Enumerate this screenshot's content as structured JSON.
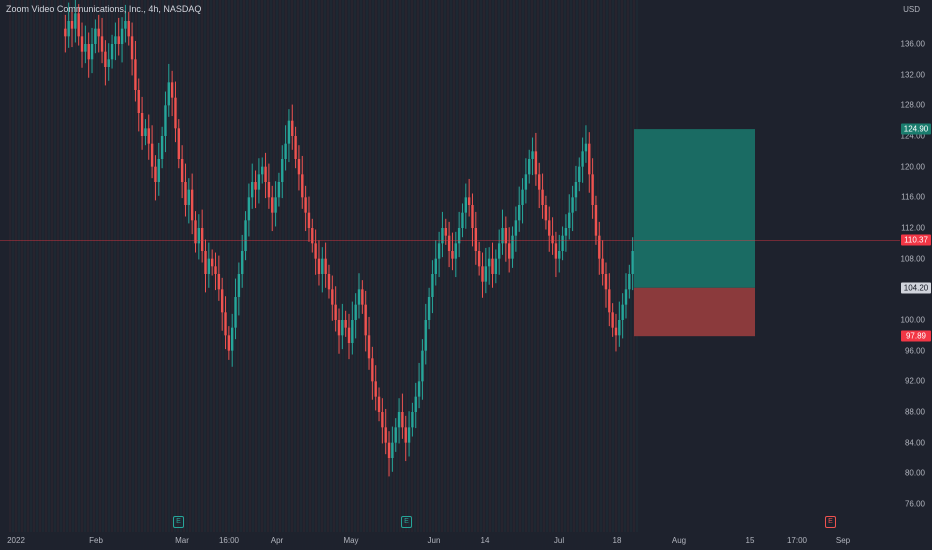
{
  "symbol_title": "Zoom Video Communications, Inc., 4h, NASDAQ",
  "currency": "USD",
  "colors": {
    "up": "#26a69a",
    "down": "#ef5350",
    "target_zone": "#1a6b63",
    "stop_zone": "#8b3a3c",
    "current_price_line": "#f23645"
  },
  "price_axis": {
    "ticks": [
      "136.00",
      "132.00",
      "128.00",
      "124.00",
      "120.00",
      "116.00",
      "112.00",
      "108.00",
      "104.00",
      "100.00",
      "96.00",
      "92.00",
      "88.00",
      "84.00",
      "80.00",
      "76.00"
    ]
  },
  "price_labels": {
    "target": "124.90",
    "current": "110.37",
    "entry": "104.20",
    "stop": "97.89"
  },
  "prices": {
    "target": 124.9,
    "current": 110.37,
    "entry": 104.2,
    "stop": 97.89
  },
  "time_axis": {
    "ticks": [
      "2022",
      "Feb",
      "Mar",
      "16:00",
      "Apr",
      "May",
      "Jun",
      "14",
      "Jul",
      "18",
      "Aug",
      "15",
      "17:00",
      "Sep"
    ]
  },
  "event_markers": [
    {
      "icon": "earnings-icon",
      "label": "E"
    },
    {
      "icon": "earnings-icon",
      "label": "E"
    },
    {
      "icon": "earnings-icon",
      "label": "E"
    }
  ],
  "candles_closes": [
    138,
    137,
    139,
    138,
    140,
    137,
    135,
    136,
    134,
    136,
    138,
    137,
    135,
    133,
    134,
    136,
    137,
    136,
    138,
    139,
    137,
    134,
    130,
    127,
    124,
    125,
    123,
    120,
    118,
    121,
    124,
    128,
    131,
    129,
    125,
    121,
    118,
    115,
    117,
    113,
    110,
    112,
    109,
    106,
    108,
    107,
    106,
    104,
    101,
    98,
    96,
    99,
    103,
    106,
    109,
    113,
    116,
    118,
    117,
    119,
    120,
    118,
    116,
    114,
    116,
    118,
    121,
    123,
    126,
    124,
    121,
    119,
    116,
    114,
    112,
    110,
    108,
    106,
    108,
    106,
    104,
    102,
    100,
    98,
    100,
    99,
    97,
    100,
    102,
    104,
    102,
    98,
    95,
    92,
    90,
    88,
    86,
    84,
    82,
    84,
    86,
    88,
    86,
    84,
    86,
    88,
    90,
    92,
    96,
    100,
    103,
    106,
    108,
    110,
    112,
    111,
    109,
    108,
    110,
    112,
    114,
    116,
    115,
    112,
    109,
    107,
    105,
    107,
    108,
    106,
    108,
    110,
    112,
    110,
    108,
    111,
    113,
    115,
    117,
    119,
    121,
    122,
    119,
    117,
    115,
    113,
    111,
    110,
    108,
    109,
    111,
    112,
    114,
    116,
    118,
    120,
    122,
    123,
    119,
    115,
    111,
    108,
    106,
    104,
    101,
    99,
    98,
    100,
    102,
    104,
    106,
    109,
    110
  ]
}
